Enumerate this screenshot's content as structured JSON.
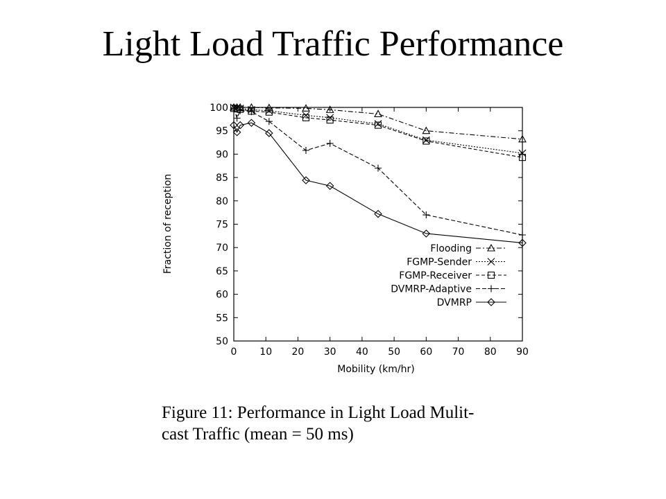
{
  "title": "Light Load Traffic Performance",
  "caption": {
    "line1": "Figure 11: Performance in Light Load Mulit-",
    "line2": "cast Traffic (mean = 50 ms)"
  },
  "chart_data": {
    "type": "line",
    "xlabel": "Mobility (km/hr)",
    "ylabel": "Fraction of reception",
    "xlim": [
      0,
      90
    ],
    "ylim": [
      50,
      100
    ],
    "xticks": [
      0,
      10,
      20,
      30,
      40,
      50,
      60,
      70,
      80,
      90
    ],
    "yticks": [
      50,
      55,
      60,
      65,
      70,
      75,
      80,
      85,
      90,
      95,
      100
    ],
    "grid": false,
    "legend_position": "center-right",
    "series": [
      {
        "name": "Flooding",
        "marker": "triangle",
        "dash": "7 3 2 3",
        "x": [
          0,
          1,
          2,
          5.5,
          11,
          22.5,
          30,
          45,
          60,
          90
        ],
        "y": [
          100,
          100,
          100,
          100,
          99.9,
          99.8,
          99.5,
          98.6,
          95,
          93.2
        ]
      },
      {
        "name": "FGMP-Sender",
        "marker": "x",
        "dash": "2 2",
        "x": [
          0,
          1,
          2,
          5.5,
          11,
          22.5,
          30,
          45,
          60,
          90
        ],
        "y": [
          100,
          100,
          99.8,
          99.5,
          99.3,
          98.3,
          97.8,
          96.5,
          93,
          90.2
        ]
      },
      {
        "name": "FGMP-Receiver",
        "marker": "square",
        "dash": "5 3",
        "x": [
          0,
          1,
          2,
          5.5,
          11,
          22.5,
          30,
          45,
          60,
          90
        ],
        "y": [
          99.8,
          99.7,
          99.6,
          99.2,
          99,
          97.8,
          97.3,
          96.2,
          92.8,
          89.3
        ]
      },
      {
        "name": "DVMRP-Adaptive",
        "marker": "plus",
        "dash": "6 3",
        "x": [
          0,
          1,
          2,
          5.5,
          11,
          22.5,
          30,
          45,
          60,
          90
        ],
        "y": [
          99.8,
          97.7,
          99.3,
          99.1,
          97,
          90.8,
          92.3,
          87,
          77,
          72.7
        ]
      },
      {
        "name": "DVMRP",
        "marker": "diamond",
        "dash": "",
        "x": [
          0,
          1,
          2,
          5.5,
          11,
          22.5,
          30,
          45,
          60,
          90
        ],
        "y": [
          96.2,
          94.7,
          96.2,
          96.7,
          94.5,
          84.4,
          83.2,
          77.2,
          73,
          71
        ]
      }
    ]
  }
}
